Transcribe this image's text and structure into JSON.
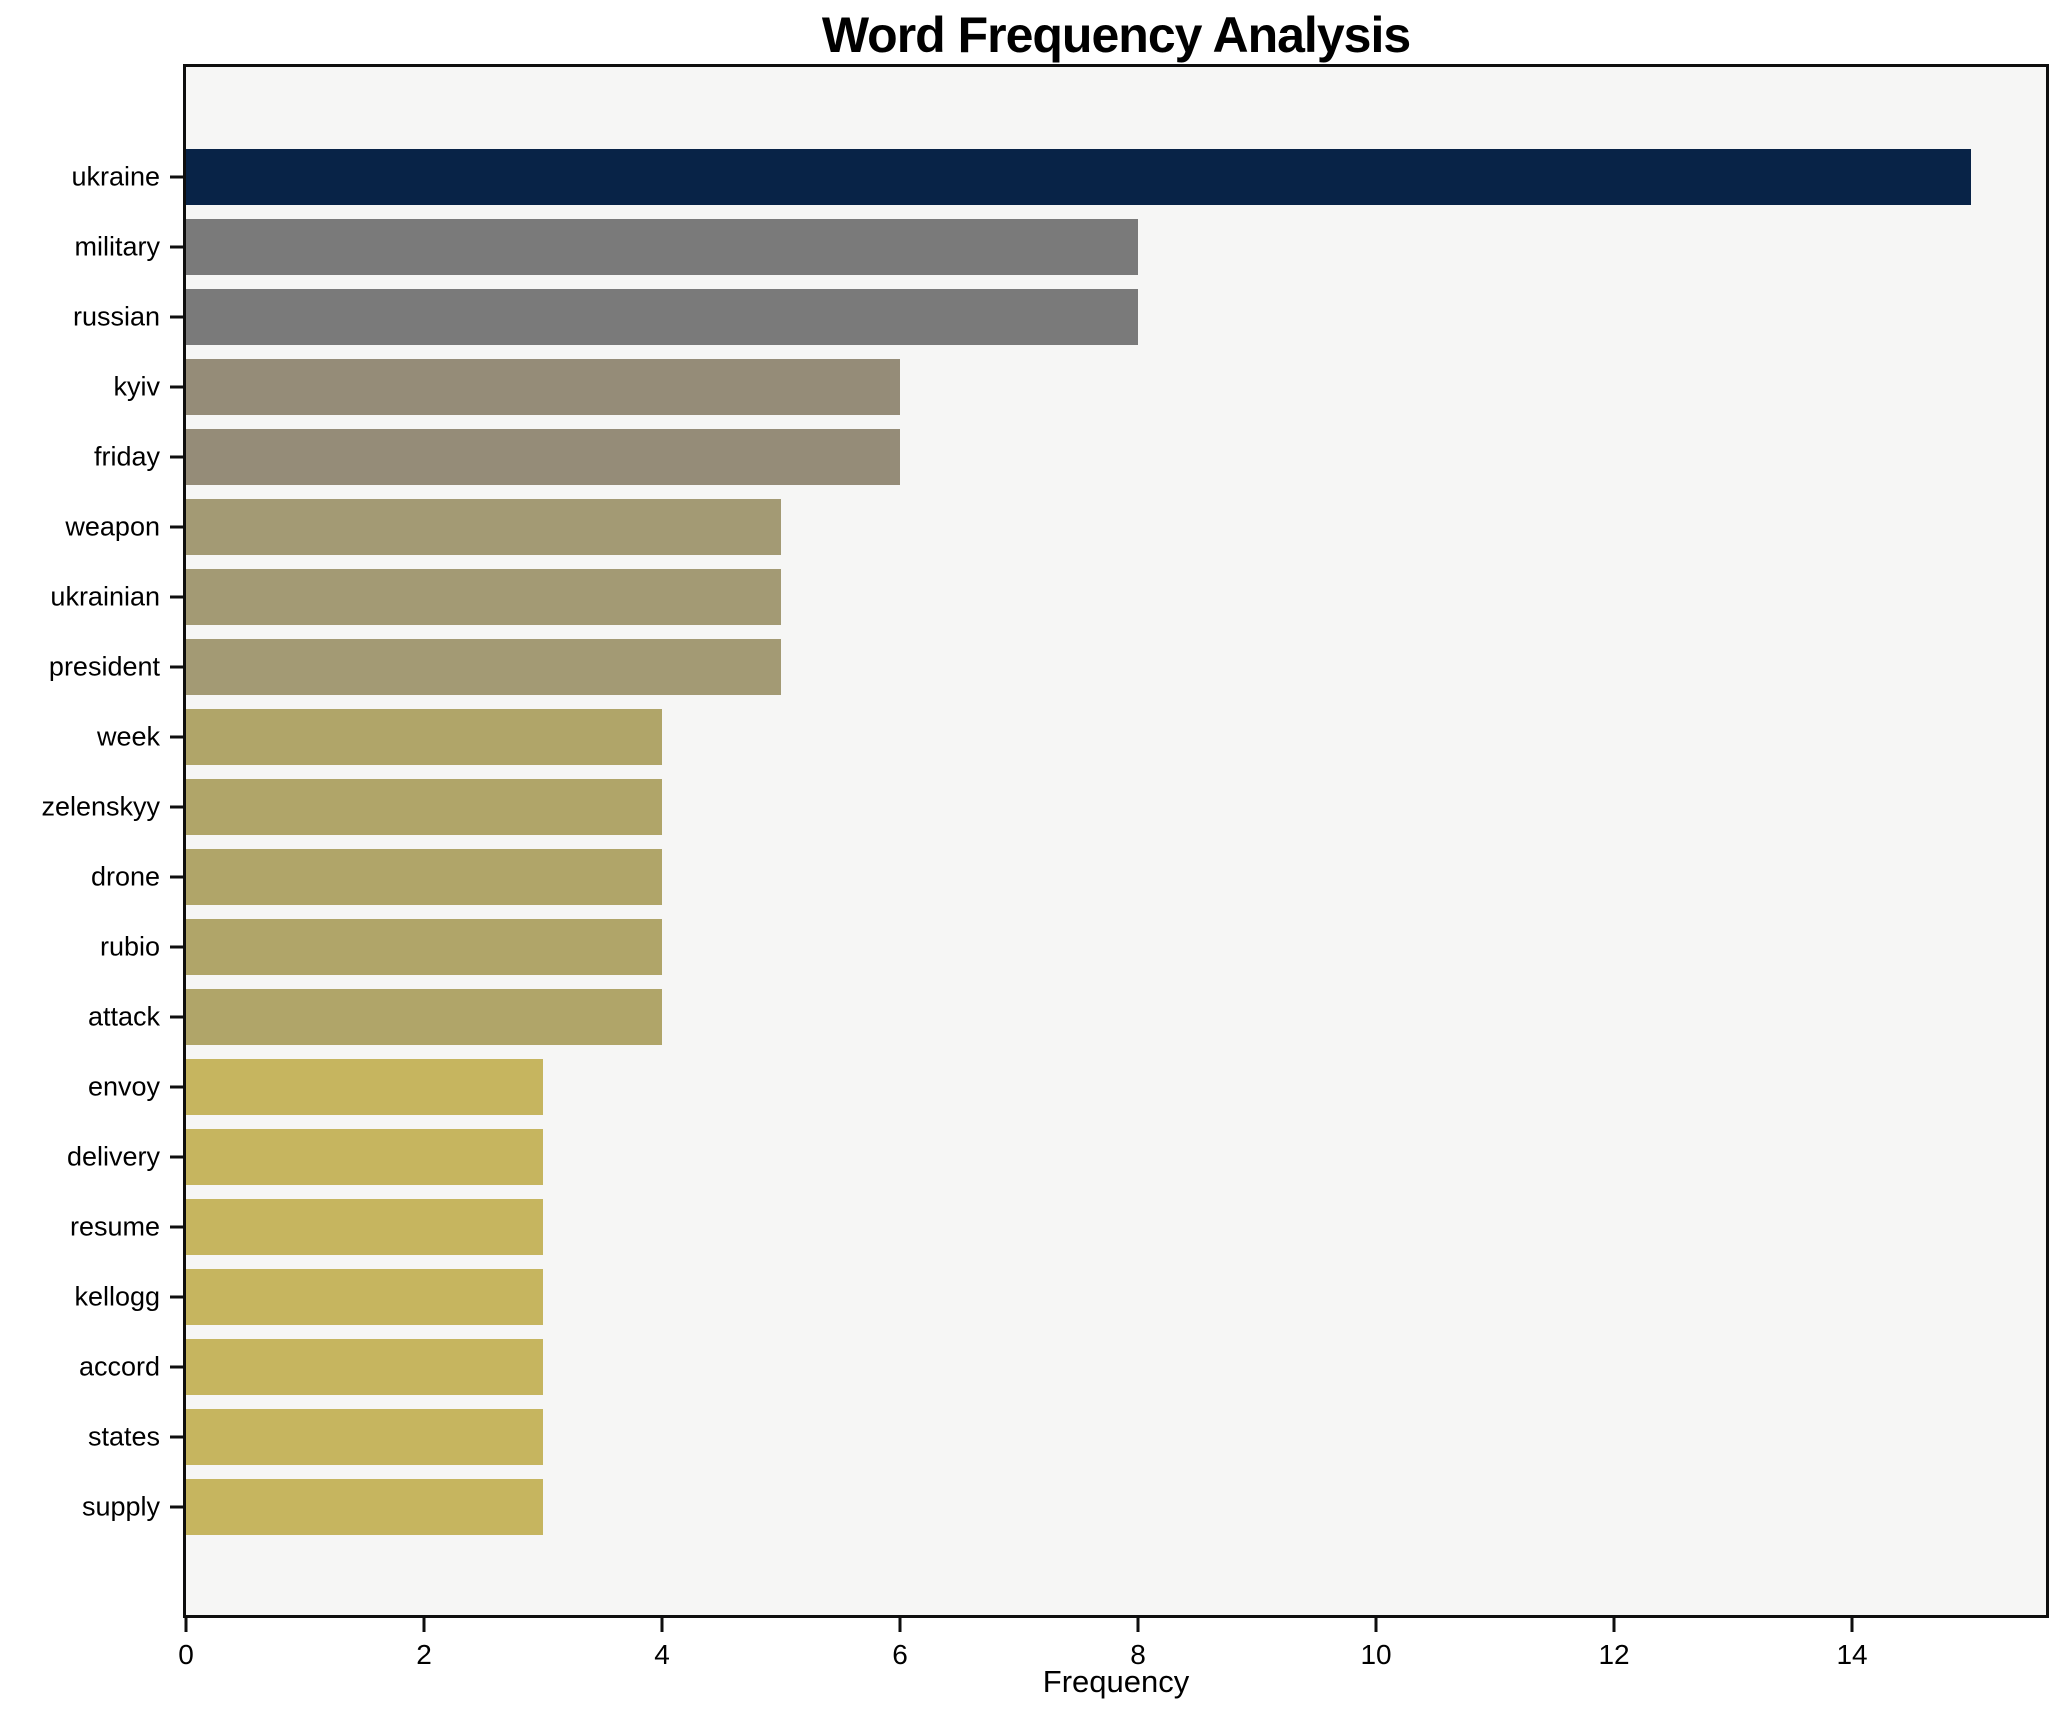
{
  "chart_data": {
    "type": "bar",
    "orientation": "horizontal",
    "title": "Word Frequency Analysis",
    "xlabel": "Frequency",
    "ylabel": "",
    "categories": [
      "ukraine",
      "military",
      "russian",
      "kyiv",
      "friday",
      "weapon",
      "ukrainian",
      "president",
      "week",
      "zelenskyy",
      "drone",
      "rubio",
      "attack",
      "envoy",
      "delivery",
      "resume",
      "kellogg",
      "accord",
      "states",
      "supply"
    ],
    "values": [
      15,
      8,
      8,
      6,
      6,
      5,
      5,
      5,
      4,
      4,
      4,
      4,
      4,
      3,
      3,
      3,
      3,
      3,
      3,
      3
    ],
    "bar_colors": [
      "#082347",
      "#7a7a7a",
      "#7a7a7a",
      "#958c78",
      "#958c78",
      "#a39a74",
      "#a39a74",
      "#a39a74",
      "#b0a569",
      "#b0a569",
      "#b0a569",
      "#b0a569",
      "#b0a569",
      "#c6b55f",
      "#c6b55f",
      "#c6b55f",
      "#c6b55f",
      "#c6b55f",
      "#c6b55f",
      "#c6b55f"
    ],
    "xlim": [
      0,
      15.63
    ],
    "xticks": [
      0,
      2,
      4,
      6,
      8,
      10,
      12,
      14
    ],
    "grid": false,
    "legend": null,
    "plot_background": "#f6f6f5",
    "figure_background": "#ffffff",
    "spine_color": "#0e0e0e",
    "text_color": "#000000"
  }
}
